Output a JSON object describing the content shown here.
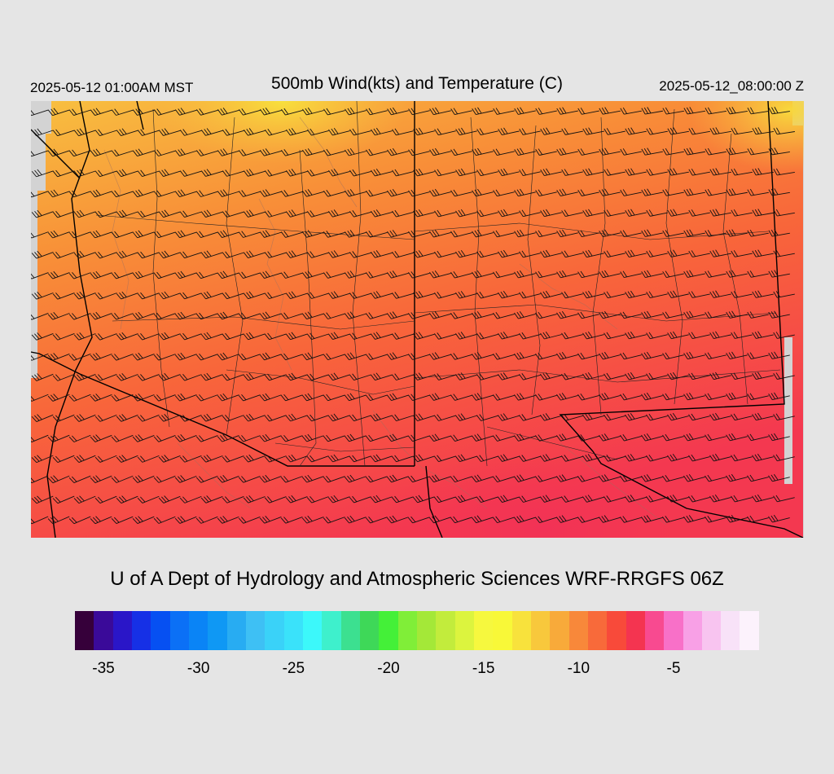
{
  "header": {
    "local_time": "2025-05-12 01:00AM MST",
    "title": "500mb Wind(kts) and Temperature (C)",
    "utc_time": "2025-05-12_08:00:00 Z"
  },
  "credit": "U of A Dept of Hydrology and Atmospheric Sciences WRF-RRGFS 06Z",
  "colorbar": {
    "min": -36,
    "max": -1,
    "step": 1,
    "colors": [
      "#36003a",
      "#3a0a99",
      "#2a16c8",
      "#1630e6",
      "#0650f2",
      "#0b70f6",
      "#0a84f6",
      "#0f98f4",
      "#28acf2",
      "#3ec0f4",
      "#3ad2f8",
      "#3ae2fa",
      "#3cf8fa",
      "#3ef0cc",
      "#3ce090",
      "#3ed858",
      "#44f038",
      "#80ee38",
      "#a4e838",
      "#c2ec3c",
      "#dcf43e",
      "#f6f83e",
      "#f8f838",
      "#f8e23c",
      "#f8c83c",
      "#f8aa3a",
      "#f8883a",
      "#f86a3a",
      "#f84a3a",
      "#f43450",
      "#f84a90",
      "#f870c8",
      "#f8a0e6",
      "#f8c4f0",
      "#f8e2f8",
      "#fcf2fc"
    ],
    "tick_labels": [
      "-35",
      "-30",
      "-25",
      "-20",
      "-15",
      "-10",
      "-5"
    ],
    "tick_values": [
      -35,
      -30,
      -25,
      -20,
      -15,
      -10,
      -5
    ]
  }
}
